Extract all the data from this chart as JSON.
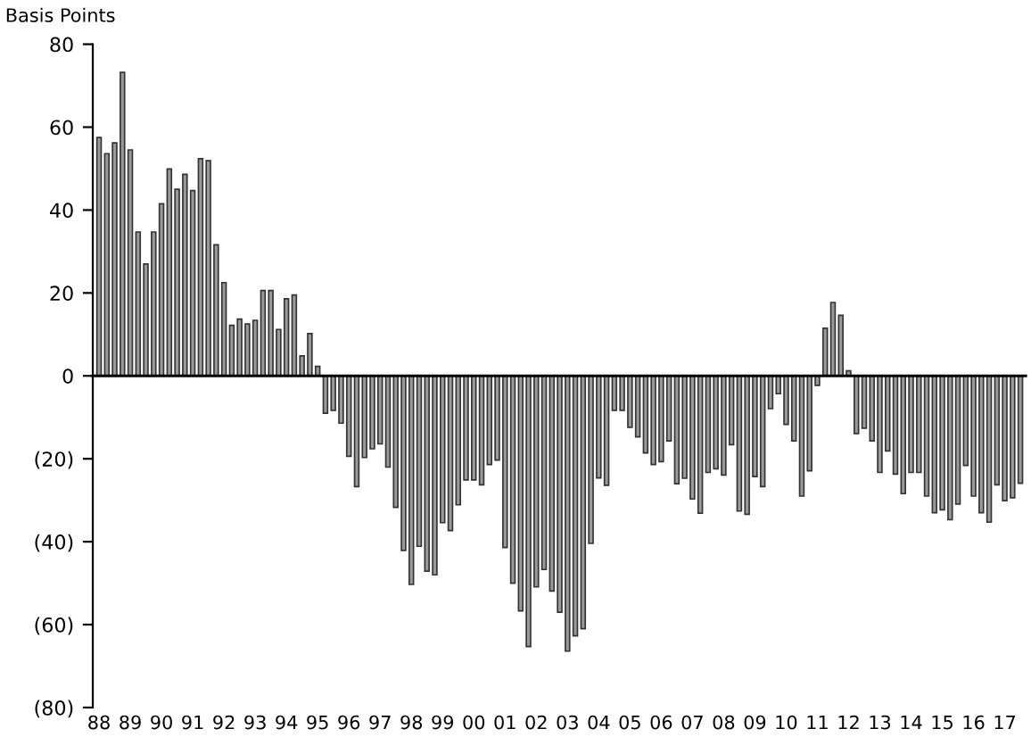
{
  "chart_data": {
    "type": "bar",
    "ylabel": "Basis Points",
    "categories": [
      "88",
      null,
      null,
      null,
      "89",
      null,
      null,
      null,
      "90",
      null,
      null,
      null,
      "91",
      null,
      null,
      null,
      "92",
      null,
      null,
      null,
      "93",
      null,
      null,
      null,
      "94",
      null,
      null,
      null,
      "95",
      null,
      null,
      null,
      "96",
      null,
      null,
      null,
      "97",
      null,
      null,
      null,
      "98",
      null,
      null,
      null,
      "99",
      null,
      null,
      null,
      "00",
      null,
      null,
      null,
      "01",
      null,
      null,
      null,
      "02",
      null,
      null,
      null,
      "03",
      null,
      null,
      null,
      "04",
      null,
      null,
      null,
      "05",
      null,
      null,
      null,
      "06",
      null,
      null,
      null,
      "07",
      null,
      null,
      null,
      "08",
      null,
      null,
      null,
      "09",
      null,
      null,
      null,
      "10",
      null,
      null,
      null,
      "11",
      null,
      null,
      null,
      "12",
      null,
      null,
      null,
      "13",
      null,
      null,
      null,
      "14",
      null,
      null,
      null,
      "15",
      null,
      null,
      null,
      "16",
      null,
      null,
      null,
      "17",
      null,
      null
    ],
    "values": [
      57.5,
      53.6,
      56.2,
      73.2,
      54.5,
      34.7,
      27,
      34.7,
      41.5,
      49.9,
      45,
      48.6,
      44.7,
      52.4,
      51.9,
      31.6,
      22.5,
      12.2,
      13.7,
      12.5,
      13.4,
      20.6,
      20.6,
      11.2,
      18.6,
      19.5,
      4.8,
      10.2,
      2.3,
      -9,
      -8.3,
      -11.4,
      -19.4,
      -26.7,
      -19.7,
      -17.6,
      -16.4,
      -22,
      -31.7,
      -42.1,
      -50.3,
      -41.1,
      -47.1,
      -48,
      -35.4,
      -37.3,
      -31.1,
      -25.1,
      -25.1,
      -26.3,
      -21.4,
      -20.3,
      -41.4,
      -50,
      -56.7,
      -65.3,
      -50.9,
      -46.7,
      -51.9,
      -57,
      -66.4,
      -62.7,
      -61,
      -40.4,
      -24.6,
      -26.4,
      -8.3,
      -8.3,
      -12.4,
      -14.7,
      -18.6,
      -21.4,
      -20.7,
      -15.7,
      -26,
      -24.7,
      -29.7,
      -33.1,
      -23.3,
      -22.4,
      -23.9,
      -16.6,
      -32.6,
      -33.4,
      -24.3,
      -26.7,
      -7.9,
      -4.3,
      -11.7,
      -15.7,
      -29,
      -22.9,
      -2.3,
      11.5,
      17.7,
      14.6,
      1.2,
      -13.9,
      -12.6,
      -15.7,
      -23.3,
      -18.1,
      -23.7,
      -28.4,
      -23.3,
      -23.3,
      -29,
      -33,
      -32.3,
      -34.7,
      -30.9,
      -21.6,
      -29,
      -33,
      -35.3,
      -26.3,
      -30.1,
      -29.4,
      -25.9
    ],
    "color": "#9a9a9a",
    "ylim": [
      -80,
      80
    ],
    "yticks": [
      {
        "value": -80,
        "label": "(80)"
      },
      {
        "value": -60,
        "label": "(60)"
      },
      {
        "value": -40,
        "label": "(40)"
      },
      {
        "value": -20,
        "label": "(20)"
      },
      0,
      20,
      40,
      60,
      80
    ],
    "legend": false
  }
}
